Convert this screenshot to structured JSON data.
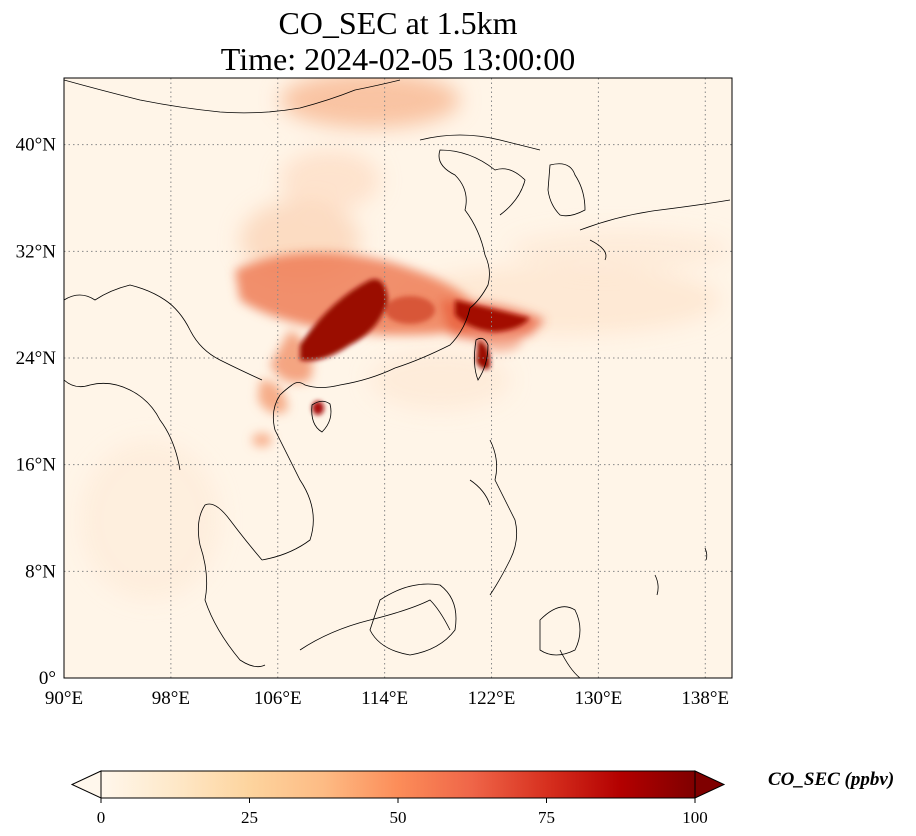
{
  "title": {
    "line1": "CO_SEC at 1.5km",
    "line2": "Time: 2024-02-05 13:00:00"
  },
  "map": {
    "extent_lon": [
      90,
      140
    ],
    "extent_lat": [
      0,
      45
    ],
    "lon_ticks": [
      "90°E",
      "98°E",
      "106°E",
      "114°E",
      "122°E",
      "130°E",
      "138°E"
    ],
    "lat_ticks": [
      "0°",
      "8°N",
      "16°N",
      "24°N",
      "32°N",
      "40°N"
    ],
    "lon_values": [
      90,
      98,
      106,
      114,
      122,
      130,
      138
    ],
    "lat_values": [
      0,
      8,
      16,
      24,
      32,
      40
    ],
    "gridlines": true,
    "colormap": "OrRd",
    "colors": {
      "low": "#fff7ec",
      "mid_low": "#fdd49e",
      "mid": "#fc8d59",
      "high": "#d7301f",
      "max": "#7f0000",
      "coastline": "#000000",
      "grid": "#888888"
    }
  },
  "colorbar": {
    "label": "CO_SEC (ppbv)",
    "ticks": [
      "0",
      "25",
      "50",
      "75",
      "100"
    ],
    "tick_values": [
      0,
      25,
      50,
      75,
      100
    ],
    "range": [
      0,
      100
    ],
    "extend": "both"
  }
}
